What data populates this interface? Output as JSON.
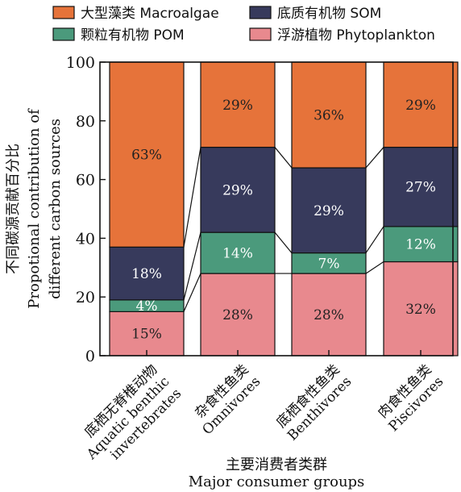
{
  "chart_data": {
    "type": "bar",
    "stacked": true,
    "categories": [
      [
        "底栖无脊椎动物",
        "Aquatic benthic",
        "invertebrates"
      ],
      [
        "杂食性鱼类",
        "Omnivores"
      ],
      [
        "底栖食性鱼类",
        "Benthivores"
      ],
      [
        "肉食性鱼类",
        "Piscivores"
      ]
    ],
    "series": [
      {
        "name": "浮游植物 Phytoplankton",
        "color": "#e8898e",
        "label_color": "#222222",
        "values": [
          15,
          28,
          28,
          32
        ],
        "labels": [
          "15%",
          "28%",
          "28%",
          "32%"
        ]
      },
      {
        "name": "颗粒有机物 POM",
        "color": "#4b9a7c",
        "label_color": "#ffffff",
        "values": [
          4,
          14,
          7,
          12
        ],
        "labels": [
          "4%",
          "14%",
          "7%",
          "12%"
        ]
      },
      {
        "name": "底质有机物 SOM",
        "color": "#373a5c",
        "label_color": "#ffffff",
        "values": [
          18,
          29,
          29,
          27
        ],
        "labels": [
          "18%",
          "29%",
          "29%",
          "27%"
        ]
      },
      {
        "name": "大型藻类 Macroalgae",
        "color": "#e6733a",
        "label_color": "#222222",
        "values": [
          63,
          29,
          36,
          29
        ],
        "labels": [
          "63%",
          "29%",
          "36%",
          "29%"
        ]
      }
    ],
    "legend_order": [
      3,
      2,
      1,
      0
    ],
    "legend_placement": "top",
    "ylim": [
      0,
      100
    ],
    "yticks": [
      0,
      20,
      40,
      60,
      80,
      100
    ],
    "ylabel": [
      "不同碳源贡献百分比",
      "Propotional contribution of",
      "different carbon sources"
    ],
    "xlabel": [
      "主要消费者类群",
      "Major consumer groups"
    ],
    "grid": false
  }
}
